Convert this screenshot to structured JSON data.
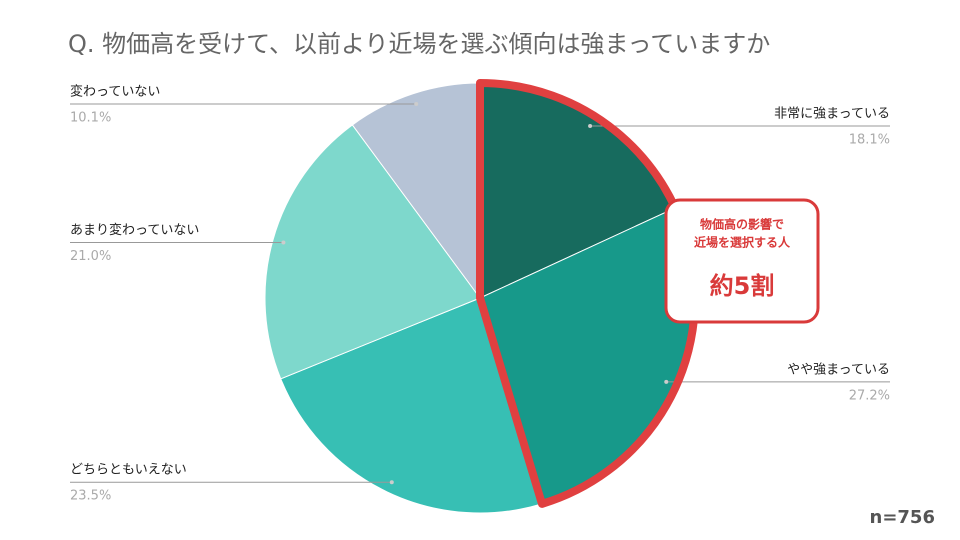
{
  "chart_data": {
    "type": "pie",
    "title": "Q. 物価高を受けて、以前より近場を選ぶ傾向は強まっていますか",
    "categories": [
      "非常に強まっている",
      "やや強まっている",
      "どちらともいえない",
      "あまり変わっていない",
      "変わっていない"
    ],
    "values": [
      18.1,
      27.2,
      23.5,
      21.0,
      10.1
    ],
    "value_labels": [
      "18.1%",
      "27.2%",
      "23.5%",
      "21.0%",
      "10.1%"
    ],
    "colors": [
      "#176b5e",
      "#17998a",
      "#37bfb4",
      "#7ed8cc",
      "#b6c3d6"
    ],
    "annotation": {
      "lines": [
        "物価高の影響で",
        "近場を選択する人"
      ],
      "emphasis": "約5割"
    },
    "note": "n=756"
  }
}
